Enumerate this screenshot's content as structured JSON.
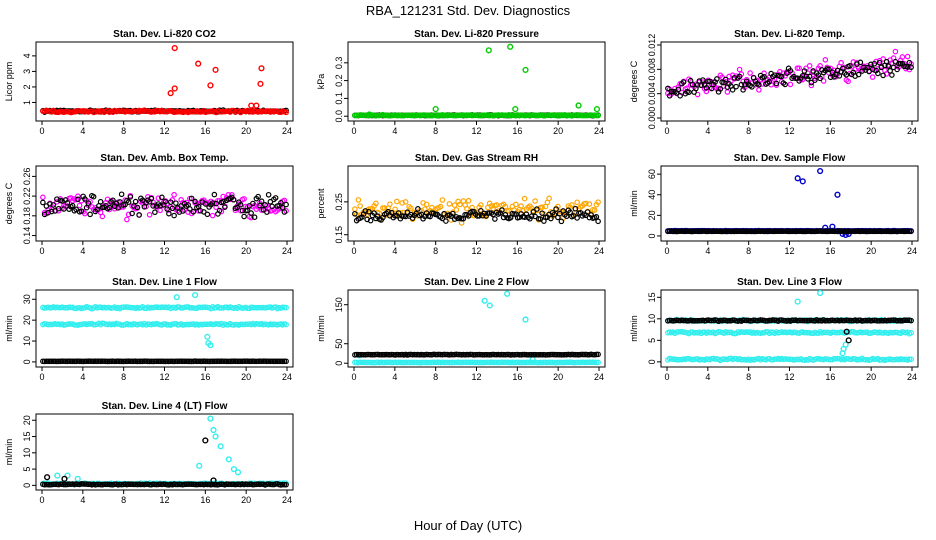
{
  "figure": {
    "title": "RBA_121231  Std. Dev. Diagnostics",
    "xlabel": "Hour of Day (UTC)"
  },
  "chart_data": [
    {
      "type": "scatter",
      "title": "Stan. Dev. Li-820 CO2",
      "ylabel": "Licor ppm",
      "xlim": [
        0,
        24
      ],
      "ylim": [
        0,
        4.7
      ],
      "yticks": [
        1,
        2,
        3,
        4
      ],
      "ytick_labels": [
        "1",
        "2",
        "3",
        "4"
      ],
      "series": [
        {
          "name": "black",
          "color": "#000000",
          "base": 0.45,
          "noise": 0.08,
          "outliers": []
        },
        {
          "name": "colored",
          "color": "#ff0000",
          "base": 0.42,
          "noise": 0.1,
          "outliers": [
            [
              13.0,
              4.5
            ],
            [
              13.0,
              1.9
            ],
            [
              12.6,
              1.6
            ],
            [
              15.3,
              3.5
            ],
            [
              17.0,
              3.1
            ],
            [
              16.5,
              2.1
            ],
            [
              21.5,
              3.2
            ],
            [
              21.4,
              2.2
            ],
            [
              20.5,
              0.8
            ],
            [
              21.0,
              0.8
            ]
          ]
        }
      ]
    },
    {
      "type": "scatter",
      "title": "Stan. Dev. Li-820 Pressure",
      "ylabel": "kPa",
      "xlim": [
        0,
        24
      ],
      "ylim": [
        -0.01,
        0.4
      ],
      "yticks": [
        0.0,
        0.1,
        0.2,
        0.3
      ],
      "ytick_labels": [
        "0.0",
        "0.1",
        "0.2",
        "0.3"
      ],
      "series": [
        {
          "name": "black",
          "color": "#000000",
          "base": 0.005,
          "noise": 0.003,
          "outliers": []
        },
        {
          "name": "colored",
          "color": "#00cc00",
          "base": 0.005,
          "noise": 0.004,
          "outliers": [
            [
              13.2,
              0.37
            ],
            [
              15.3,
              0.39
            ],
            [
              16.8,
              0.26
            ],
            [
              8.0,
              0.04
            ],
            [
              15.8,
              0.04
            ],
            [
              22.0,
              0.06
            ],
            [
              23.8,
              0.04
            ],
            [
              1.5,
              0.01
            ]
          ]
        }
      ]
    },
    {
      "type": "scatter",
      "title": "Stan. Dev. Li-820 Temp.",
      "ylabel": "degrees C",
      "xlim": [
        0,
        24
      ],
      "ylim": [
        0,
        0.012
      ],
      "yticks": [
        0.0,
        0.004,
        0.008,
        0.012
      ],
      "ytick_labels": [
        "0.000",
        "0.004",
        "0.008",
        "0.012"
      ],
      "series": [
        {
          "name": "colored",
          "color": "#ff00ff",
          "base": 0.0045,
          "noise": 0.0025,
          "trend": 0.0002,
          "outliers": []
        },
        {
          "name": "black",
          "color": "#000000",
          "base": 0.0045,
          "noise": 0.002,
          "trend": 0.00018,
          "outliers": []
        }
      ]
    },
    {
      "type": "scatter",
      "title": "Stan. Dev. Amb. Box Temp.",
      "ylabel": "degrees C",
      "xlim": [
        0,
        24
      ],
      "ylim": [
        0.135,
        0.275
      ],
      "yticks": [
        0.14,
        0.18,
        0.22,
        0.26
      ],
      "ytick_labels": [
        "0.14",
        "0.18",
        "0.22",
        "0.26"
      ],
      "series": [
        {
          "name": "colored",
          "color": "#ff00ff",
          "base": 0.2,
          "noise": 0.035,
          "outliers": []
        },
        {
          "name": "black",
          "color": "#000000",
          "base": 0.2,
          "noise": 0.03,
          "outliers": []
        }
      ]
    },
    {
      "type": "scatter",
      "title": "Stan. Dev. Gas Stream RH",
      "ylabel": "percent",
      "xlim": [
        0,
        24
      ],
      "ylim": [
        0.14,
        0.35
      ],
      "yticks": [
        0.15,
        0.25
      ],
      "ytick_labels": [
        "0.15",
        "0.25"
      ],
      "series": [
        {
          "name": "colored",
          "color": "#ffa500",
          "base": 0.225,
          "noise": 0.045,
          "outliers": []
        },
        {
          "name": "black",
          "color": "#000000",
          "base": 0.21,
          "noise": 0.025,
          "outliers": []
        }
      ]
    },
    {
      "type": "scatter",
      "title": "Stan. Dev. Sample Flow",
      "ylabel": "ml/min",
      "xlim": [
        0,
        24
      ],
      "ylim": [
        -2,
        65
      ],
      "yticks": [
        0,
        20,
        40,
        60
      ],
      "ytick_labels": [
        "0",
        "20",
        "40",
        "60"
      ],
      "series": [
        {
          "name": "colored",
          "color": "#0000cc",
          "base": 5,
          "noise": 0.3,
          "outliers": [
            [
              12.8,
              56
            ],
            [
              13.3,
              53
            ],
            [
              15.0,
              63
            ],
            [
              16.7,
              40
            ],
            [
              17.2,
              2
            ],
            [
              17.5,
              1
            ],
            [
              17.8,
              2
            ],
            [
              15.5,
              8
            ],
            [
              16.2,
              9
            ]
          ]
        },
        {
          "name": "black",
          "color": "#000000",
          "base": 4.5,
          "noise": 0.3,
          "outliers": []
        }
      ]
    },
    {
      "type": "scatter",
      "title": "Stan. Dev. Line 1 Flow",
      "ylabel": "ml/min",
      "xlim": [
        0,
        24
      ],
      "ylim": [
        -1,
        33
      ],
      "yticks": [
        0,
        10,
        20,
        30
      ],
      "ytick_labels": [
        "0",
        "10",
        "20",
        "30"
      ],
      "series": [
        {
          "name": "upper",
          "color": "#33eeee",
          "base": 26,
          "noise": 0.6,
          "outliers": [
            [
              15.0,
              32
            ],
            [
              16.2,
              12
            ],
            [
              16.3,
              9
            ],
            [
              16.5,
              8
            ],
            [
              13.2,
              31
            ]
          ]
        },
        {
          "name": "lower",
          "color": "#33eeee",
          "base": 18,
          "noise": 0.6,
          "outliers": []
        },
        {
          "name": "black",
          "color": "#000000",
          "base": 0.3,
          "noise": 0.1,
          "outliers": []
        }
      ]
    },
    {
      "type": "scatter",
      "title": "Stan. Dev. Line 2 Flow",
      "ylabel": "ml/min",
      "xlim": [
        0,
        24
      ],
      "ylim": [
        -2,
        180
      ],
      "yticks": [
        0,
        50,
        150
      ],
      "ytick_labels": [
        "0",
        "50",
        "150"
      ],
      "series": [
        {
          "name": "colored",
          "color": "#33eeee",
          "base": 2,
          "noise": 1,
          "outliers": [
            [
              12.8,
              160
            ],
            [
              13.3,
              148
            ],
            [
              15.0,
              178
            ],
            [
              16.8,
              112
            ],
            [
              17.5,
              10
            ],
            [
              0.5,
              20
            ]
          ]
        },
        {
          "name": "black",
          "color": "#000000",
          "base": 22,
          "noise": 1,
          "outliers": []
        }
      ]
    },
    {
      "type": "scatter",
      "title": "Stan. Dev. Line 3 Flow",
      "ylabel": "ml/min",
      "xlim": [
        0,
        24
      ],
      "ylim": [
        -0.5,
        16
      ],
      "yticks": [
        0,
        5,
        10,
        15
      ],
      "ytick_labels": [
        "0",
        "5",
        "10",
        "15"
      ],
      "series": [
        {
          "name": "upper",
          "color": "#33eeee",
          "base": 9.6,
          "noise": 0.3,
          "outliers": [
            [
              15.0,
              16
            ],
            [
              12.8,
              14
            ],
            [
              17.2,
              2
            ],
            [
              17.5,
              4
            ],
            [
              17.3,
              3
            ]
          ]
        },
        {
          "name": "mid",
          "color": "#33eeee",
          "base": 6.8,
          "noise": 0.3,
          "outliers": []
        },
        {
          "name": "low",
          "color": "#33eeee",
          "base": 0.6,
          "noise": 0.3,
          "outliers": []
        },
        {
          "name": "black",
          "color": "#000000",
          "base": 9.6,
          "noise": 0.2,
          "outliers": [
            [
              17.8,
              5
            ],
            [
              17.6,
              7
            ]
          ]
        }
      ]
    },
    {
      "type": "scatter",
      "title": "Stan. Dev. Line 4 (LT) Flow",
      "ylabel": "ml/min",
      "xlim": [
        0,
        24
      ],
      "ylim": [
        -0.5,
        21
      ],
      "yticks": [
        0,
        5,
        10,
        15,
        20
      ],
      "ytick_labels": [
        "0",
        "5",
        "10",
        "15",
        "20"
      ],
      "series": [
        {
          "name": "colored",
          "color": "#33eeee",
          "base": 0.5,
          "noise": 0.3,
          "outliers": [
            [
              16.5,
              20.5
            ],
            [
              16.8,
              17
            ],
            [
              17.0,
              15
            ],
            [
              17.5,
              12
            ],
            [
              18.3,
              8
            ],
            [
              18.8,
              5
            ],
            [
              19.2,
              4
            ],
            [
              15.4,
              6
            ],
            [
              1.5,
              3
            ],
            [
              2.5,
              3
            ],
            [
              3.5,
              2
            ]
          ]
        },
        {
          "name": "black",
          "color": "#000000",
          "base": 0.3,
          "noise": 0.2,
          "outliers": [
            [
              16.0,
              13.8
            ],
            [
              0.5,
              2.5
            ],
            [
              2.2,
              2
            ],
            [
              16.8,
              1.5
            ]
          ]
        }
      ]
    }
  ]
}
